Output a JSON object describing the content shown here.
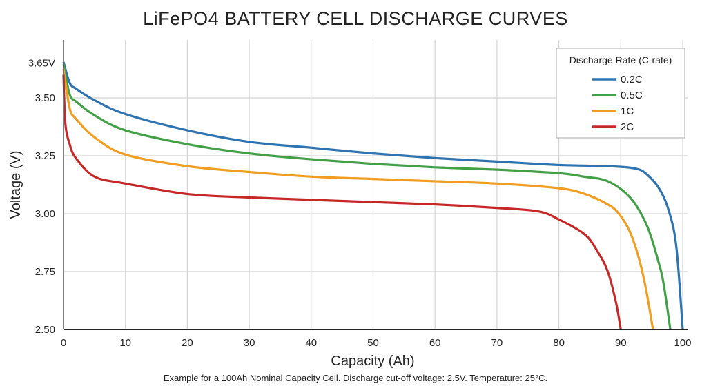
{
  "chart_data": {
    "type": "line",
    "title": "LiFePO4 BATTERY CELL DISCHARGE CURVES",
    "xlabel": "Capacity (Ah)",
    "ylabel": "Voltage (V)",
    "footnote": "Example for a 100Ah Nominal Capacity Cell. Discharge cut-off voltage: 2.5V. Temperature: 25°C.",
    "xlim": [
      0,
      100
    ],
    "ylim": [
      2.5,
      3.75
    ],
    "x_ticks": [
      "0",
      "10",
      "20",
      "30",
      "40",
      "50",
      "60",
      "70",
      "80",
      "90",
      "100"
    ],
    "y_ticks": [
      {
        "value": 3.65,
        "label": "3.65V"
      },
      {
        "value": 3.5,
        "label": "3.50"
      },
      {
        "value": 3.25,
        "label": "3.25"
      },
      {
        "value": 3.0,
        "label": "3.00"
      },
      {
        "value": 2.75,
        "label": "2.75"
      },
      {
        "value": 2.5,
        "label": "2.50"
      }
    ],
    "grid": true,
    "legend": {
      "title": "Discharge Rate (C-rate)",
      "placement": "top-right"
    },
    "series": [
      {
        "name": "0.2C",
        "color": "#2f74b0",
        "points": [
          [
            0,
            3.655
          ],
          [
            1,
            3.565
          ],
          [
            2,
            3.54
          ],
          [
            5,
            3.49
          ],
          [
            10,
            3.43
          ],
          [
            20,
            3.36
          ],
          [
            30,
            3.31
          ],
          [
            40,
            3.285
          ],
          [
            50,
            3.26
          ],
          [
            60,
            3.24
          ],
          [
            70,
            3.225
          ],
          [
            80,
            3.21
          ],
          [
            88,
            3.205
          ],
          [
            92.3,
            3.195
          ],
          [
            94.2,
            3.17
          ],
          [
            96.4,
            3.1
          ],
          [
            97.9,
            3.0
          ],
          [
            99,
            2.85
          ],
          [
            100,
            2.5
          ]
        ]
      },
      {
        "name": "0.5C",
        "color": "#43a047",
        "points": [
          [
            0,
            3.645
          ],
          [
            1,
            3.515
          ],
          [
            2,
            3.485
          ],
          [
            5,
            3.425
          ],
          [
            10,
            3.36
          ],
          [
            20,
            3.3
          ],
          [
            30,
            3.26
          ],
          [
            40,
            3.235
          ],
          [
            50,
            3.215
          ],
          [
            60,
            3.2
          ],
          [
            70,
            3.19
          ],
          [
            80,
            3.175
          ],
          [
            84,
            3.16
          ],
          [
            87.9,
            3.14
          ],
          [
            91.5,
            3.07
          ],
          [
            94.2,
            2.95
          ],
          [
            96,
            2.8
          ],
          [
            96.9,
            2.7
          ],
          [
            98,
            2.5
          ]
        ]
      },
      {
        "name": "1C",
        "color": "#f09d22",
        "points": [
          [
            0,
            3.625
          ],
          [
            1,
            3.455
          ],
          [
            2,
            3.41
          ],
          [
            5,
            3.33
          ],
          [
            10,
            3.255
          ],
          [
            20,
            3.205
          ],
          [
            30,
            3.18
          ],
          [
            40,
            3.16
          ],
          [
            50,
            3.15
          ],
          [
            60,
            3.14
          ],
          [
            70,
            3.13
          ],
          [
            80,
            3.11
          ],
          [
            84.2,
            3.085
          ],
          [
            87.9,
            3.04
          ],
          [
            89.7,
            3.0
          ],
          [
            91.5,
            2.92
          ],
          [
            93,
            2.8
          ],
          [
            94.1,
            2.67
          ],
          [
            95.2,
            2.5
          ]
        ]
      },
      {
        "name": "2C",
        "color": "#c62828",
        "points": [
          [
            0,
            3.6
          ],
          [
            0.3,
            3.39
          ],
          [
            1,
            3.3
          ],
          [
            2,
            3.24
          ],
          [
            5,
            3.16
          ],
          [
            10,
            3.13
          ],
          [
            20,
            3.085
          ],
          [
            30,
            3.07
          ],
          [
            40,
            3.06
          ],
          [
            50,
            3.05
          ],
          [
            60,
            3.04
          ],
          [
            70,
            3.025
          ],
          [
            76.7,
            3.01
          ],
          [
            80,
            2.975
          ],
          [
            84.2,
            2.91
          ],
          [
            86.4,
            2.83
          ],
          [
            87.9,
            2.75
          ],
          [
            89.2,
            2.62
          ],
          [
            90,
            2.5
          ]
        ]
      }
    ]
  }
}
